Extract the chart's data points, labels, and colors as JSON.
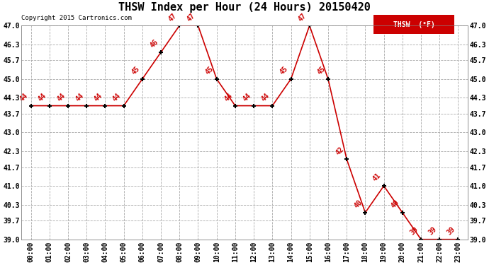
{
  "title": "THSW Index per Hour (24 Hours) 20150420",
  "copyright": "Copyright 2015 Cartronics.com",
  "legend_label": "THSW  (°F)",
  "hours": [
    0,
    1,
    2,
    3,
    4,
    5,
    6,
    7,
    8,
    9,
    10,
    11,
    12,
    13,
    14,
    15,
    16,
    17,
    18,
    19,
    20,
    21,
    22,
    23
  ],
  "values": [
    44,
    44,
    44,
    44,
    44,
    44,
    45,
    46,
    47,
    47,
    45,
    44,
    44,
    44,
    45,
    47,
    45,
    42,
    40,
    41,
    40,
    39,
    39,
    39
  ],
  "xlabels": [
    "00:00",
    "01:00",
    "02:00",
    "03:00",
    "04:00",
    "05:00",
    "06:00",
    "07:00",
    "08:00",
    "09:00",
    "10:00",
    "11:00",
    "12:00",
    "13:00",
    "14:00",
    "15:00",
    "16:00",
    "17:00",
    "18:00",
    "19:00",
    "20:00",
    "21:00",
    "22:00",
    "23:00"
  ],
  "ylim": [
    39.0,
    47.0
  ],
  "yticks": [
    39.0,
    39.7,
    40.3,
    41.0,
    41.7,
    42.3,
    43.0,
    43.7,
    44.3,
    45.0,
    45.7,
    46.3,
    47.0
  ],
  "line_color": "#cc0000",
  "marker_color": "#000000",
  "label_color": "#cc0000",
  "bg_color": "#ffffff",
  "grid_color": "#aaaaaa",
  "title_fontsize": 11,
  "copyright_fontsize": 6.5,
  "tick_fontsize": 7,
  "data_label_fontsize": 7,
  "legend_bg": "#cc0000",
  "legend_fg": "#ffffff",
  "fig_width": 6.9,
  "fig_height": 3.75,
  "dpi": 100
}
